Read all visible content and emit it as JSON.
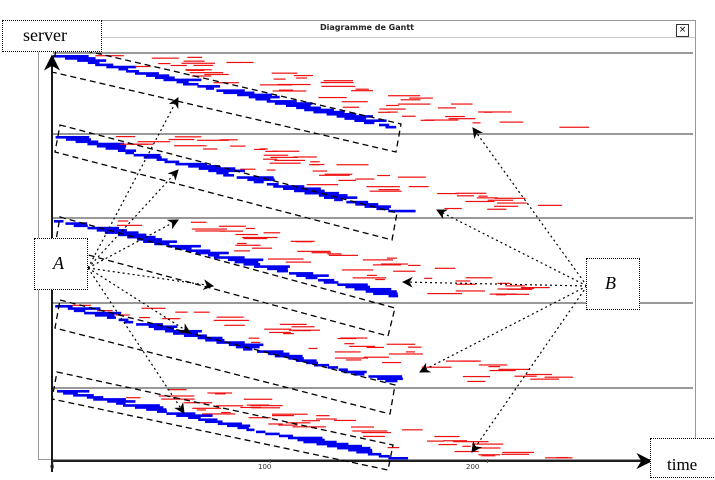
{
  "window": {
    "title": "Diagramme de Gantt",
    "close_label": "×"
  },
  "annotations": {
    "server_label": "server",
    "time_label": "time",
    "A_label": "A",
    "B_label": "B"
  },
  "axis": {
    "ticks": [
      "0",
      "100",
      "200"
    ]
  },
  "colors": {
    "primary_jobs": "#0000ee",
    "secondary_jobs": "#ee1111",
    "separator": "#333333"
  },
  "chart_data": {
    "type": "gantt",
    "xlim": [
      0,
      290
    ],
    "groups": 5,
    "x_tick_values": [
      0,
      100,
      200
    ]
  }
}
